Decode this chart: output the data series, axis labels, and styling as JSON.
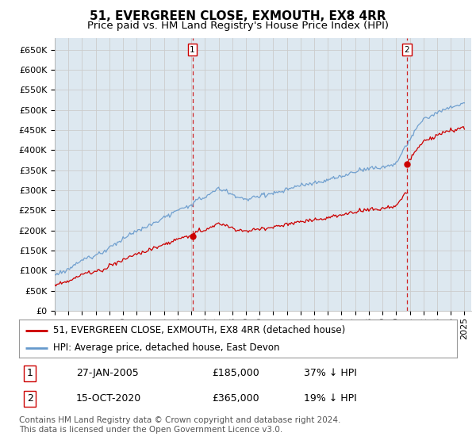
{
  "title": "51, EVERGREEN CLOSE, EXMOUTH, EX8 4RR",
  "subtitle": "Price paid vs. HM Land Registry's House Price Index (HPI)",
  "ylabel_ticks": [
    0,
    50000,
    100000,
    150000,
    200000,
    250000,
    300000,
    350000,
    400000,
    450000,
    500000,
    550000,
    600000,
    650000
  ],
  "ylim": [
    0,
    680000
  ],
  "xlim_start": 1995.0,
  "xlim_end": 2025.5,
  "red_line_color": "#cc0000",
  "blue_line_color": "#6699cc",
  "vline_color": "#cc0000",
  "grid_color": "#cccccc",
  "background_color": "#ffffff",
  "plot_bg_color": "#dde8f0",
  "legend_label_red": "51, EVERGREEN CLOSE, EXMOUTH, EX8 4RR (detached house)",
  "legend_label_blue": "HPI: Average price, detached house, East Devon",
  "event1_date": "27-JAN-2005",
  "event1_price": "£185,000",
  "event1_hpi": "37% ↓ HPI",
  "event1_year": 2005.08,
  "event2_date": "15-OCT-2020",
  "event2_price": "£365,000",
  "event2_hpi": "19% ↓ HPI",
  "event2_year": 2020.79,
  "footnote": "Contains HM Land Registry data © Crown copyright and database right 2024.\nThis data is licensed under the Open Government Licence v3.0.",
  "title_fontsize": 11,
  "subtitle_fontsize": 9.5,
  "tick_fontsize": 8,
  "legend_fontsize": 8.5,
  "table_fontsize": 9,
  "footnote_fontsize": 7.5,
  "price_2005": 185000,
  "price_2020": 365000
}
